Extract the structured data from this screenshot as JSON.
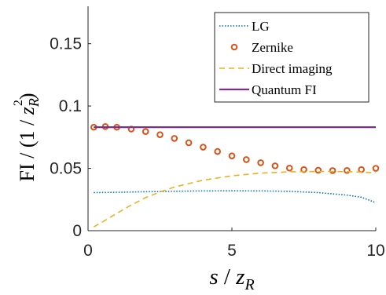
{
  "chart_data": {
    "type": "line",
    "xlabel": {
      "var": "s",
      "sep": " / ",
      "base": "z",
      "sub": "R"
    },
    "ylabel": {
      "lead": "FI / (1 / ",
      "base": "z",
      "sub": "R",
      "sup": "2",
      "close": ")"
    },
    "xlim": [
      0,
      10
    ],
    "ylim": [
      0,
      0.18
    ],
    "xticks": [
      {
        "v": 0,
        "label": "0"
      },
      {
        "v": 5,
        "label": "5"
      },
      {
        "v": 10,
        "label": "10"
      }
    ],
    "yticks": [
      {
        "v": 0,
        "label": "0"
      },
      {
        "v": 0.05,
        "label": "0.05"
      },
      {
        "v": 0.1,
        "label": "0.1"
      },
      {
        "v": 0.15,
        "label": "0.15"
      }
    ],
    "grid": false,
    "legend_position": "top-right",
    "series": [
      {
        "name": "LG",
        "style": "dotted",
        "color": "#0072BD",
        "x": [
          0.2,
          1,
          2,
          3,
          4,
          5,
          6,
          7,
          8,
          9,
          9.5,
          10
        ],
        "y": [
          0.0305,
          0.0308,
          0.0312,
          0.0316,
          0.0319,
          0.032,
          0.0319,
          0.0315,
          0.0305,
          0.0285,
          0.0268,
          0.0225
        ]
      },
      {
        "name": "Zernike",
        "style": "markers",
        "color": "#D95319",
        "x": [
          0.2,
          0.6,
          1.0,
          1.5,
          2.0,
          2.5,
          3.0,
          3.5,
          4.0,
          4.5,
          5.0,
          5.5,
          6.0,
          6.5,
          7.0,
          7.5,
          8.0,
          8.5,
          9.0,
          9.5,
          10.0
        ],
        "y": [
          0.083,
          0.0835,
          0.083,
          0.0815,
          0.0795,
          0.077,
          0.074,
          0.0705,
          0.067,
          0.0635,
          0.06,
          0.057,
          0.0545,
          0.052,
          0.0502,
          0.049,
          0.0485,
          0.0482,
          0.0483,
          0.049,
          0.05
        ]
      },
      {
        "name": "Direct imaging",
        "style": "dashed",
        "color": "#EDB120",
        "x": [
          0.2,
          0.5,
          1,
          1.5,
          2,
          2.5,
          3,
          4,
          5,
          6,
          7,
          8,
          9,
          10
        ],
        "y": [
          0.003,
          0.007,
          0.014,
          0.0205,
          0.0265,
          0.031,
          0.035,
          0.0405,
          0.044,
          0.0462,
          0.0472,
          0.0475,
          0.0473,
          0.0465
        ]
      },
      {
        "name": "Quantum FI",
        "style": "solid",
        "color": "#7E2F8E",
        "x": [
          0.2,
          10
        ],
        "y": [
          0.083,
          0.083
        ]
      }
    ]
  }
}
